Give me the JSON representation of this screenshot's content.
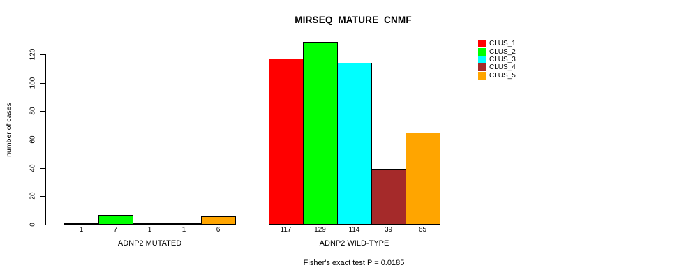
{
  "chart_data": {
    "type": "bar",
    "title": "MIRSEQ_MATURE_CNMF",
    "ylabel": "number of cases",
    "xlabel": "",
    "ylim": [
      0,
      120
    ],
    "yticks": [
      0,
      20,
      40,
      60,
      80,
      100,
      120
    ],
    "grid": false,
    "legend_position": "right",
    "bar_border_color": "#000000",
    "series": [
      {
        "name": "CLUS_1",
        "color": "#FF0000"
      },
      {
        "name": "CLUS_2",
        "color": "#00FF00"
      },
      {
        "name": "CLUS_3",
        "color": "#00FFFF"
      },
      {
        "name": "CLUS_4",
        "color": "#A52A2A"
      },
      {
        "name": "CLUS_5",
        "color": "#FFA500"
      }
    ],
    "groups": [
      {
        "label": "ADNP2 MUTATED",
        "values": [
          1,
          7,
          1,
          1,
          6
        ]
      },
      {
        "label": "ADNP2 WILD-TYPE",
        "values": [
          117,
          129,
          114,
          39,
          65
        ]
      }
    ],
    "annotation": "Fisher's exact test P = 0.0185"
  }
}
